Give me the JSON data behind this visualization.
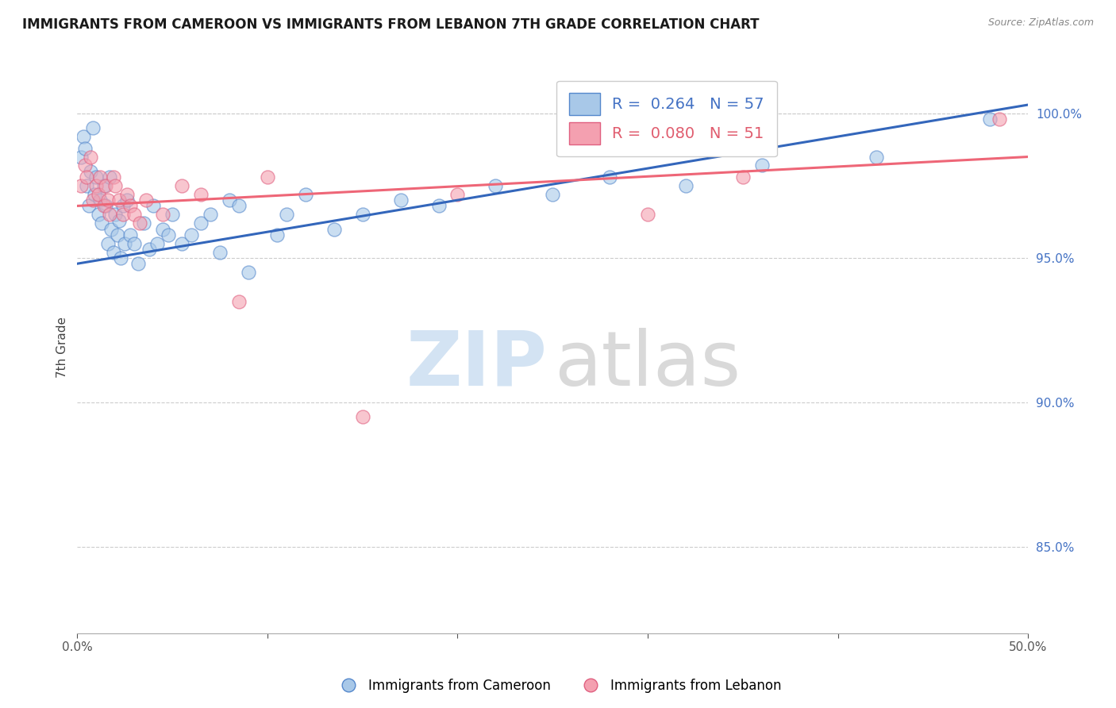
{
  "title": "IMMIGRANTS FROM CAMEROON VS IMMIGRANTS FROM LEBANON 7TH GRADE CORRELATION CHART",
  "source": "Source: ZipAtlas.com",
  "ylabel": "7th Grade",
  "xlim": [
    0.0,
    50.0
  ],
  "ylim": [
    82.0,
    101.8
  ],
  "yticks": [
    85.0,
    90.0,
    95.0,
    100.0
  ],
  "yticklabels": [
    "85.0%",
    "90.0%",
    "95.0%",
    "100.0%"
  ],
  "blue_color": "#a8c8e8",
  "pink_color": "#f4a0b0",
  "blue_edge_color": "#5588cc",
  "pink_edge_color": "#e06080",
  "blue_line_color": "#3366bb",
  "pink_line_color": "#ee6677",
  "R_blue": 0.264,
  "N_blue": 57,
  "R_pink": 0.08,
  "N_pink": 51,
  "legend_blue": "Immigrants from Cameroon",
  "legend_pink": "Immigrants from Lebanon",
  "blue_line_y0": 94.8,
  "blue_line_y1": 100.3,
  "pink_line_y0": 96.8,
  "pink_line_y1": 98.5,
  "top_grid_y": 100.0,
  "blue_scatter_x": [
    0.2,
    0.3,
    0.4,
    0.5,
    0.6,
    0.7,
    0.8,
    0.9,
    1.0,
    1.1,
    1.2,
    1.3,
    1.4,
    1.5,
    1.6,
    1.7,
    1.8,
    1.9,
    2.0,
    2.1,
    2.2,
    2.3,
    2.4,
    2.5,
    2.6,
    2.8,
    3.0,
    3.2,
    3.5,
    3.8,
    4.0,
    4.2,
    4.5,
    4.8,
    5.0,
    5.5,
    6.0,
    6.5,
    7.0,
    7.5,
    8.0,
    8.5,
    9.0,
    10.5,
    11.0,
    12.0,
    13.5,
    15.0,
    17.0,
    19.0,
    22.0,
    25.0,
    28.0,
    32.0,
    36.0,
    42.0,
    48.0
  ],
  "blue_scatter_y": [
    98.5,
    99.2,
    98.8,
    97.5,
    96.8,
    98.0,
    99.5,
    97.2,
    97.8,
    96.5,
    97.0,
    96.2,
    97.5,
    96.8,
    95.5,
    97.8,
    96.0,
    95.2,
    96.5,
    95.8,
    96.3,
    95.0,
    96.8,
    95.5,
    97.0,
    95.8,
    95.5,
    94.8,
    96.2,
    95.3,
    96.8,
    95.5,
    96.0,
    95.8,
    96.5,
    95.5,
    95.8,
    96.2,
    96.5,
    95.2,
    97.0,
    96.8,
    94.5,
    95.8,
    96.5,
    97.2,
    96.0,
    96.5,
    97.0,
    96.8,
    97.5,
    97.2,
    97.8,
    97.5,
    98.2,
    98.5,
    99.8
  ],
  "pink_scatter_x": [
    0.2,
    0.4,
    0.5,
    0.7,
    0.8,
    1.0,
    1.1,
    1.2,
    1.4,
    1.5,
    1.6,
    1.7,
    1.9,
    2.0,
    2.2,
    2.4,
    2.6,
    2.8,
    3.0,
    3.3,
    3.6,
    4.5,
    5.5,
    6.5,
    8.5,
    10.0,
    15.0,
    20.0,
    30.0,
    35.0,
    48.5
  ],
  "pink_scatter_y": [
    97.5,
    98.2,
    97.8,
    98.5,
    97.0,
    97.5,
    97.2,
    97.8,
    96.8,
    97.5,
    97.0,
    96.5,
    97.8,
    97.5,
    97.0,
    96.5,
    97.2,
    96.8,
    96.5,
    96.2,
    97.0,
    96.5,
    97.5,
    97.2,
    93.5,
    97.8,
    89.5,
    97.2,
    96.5,
    97.8,
    99.8
  ]
}
